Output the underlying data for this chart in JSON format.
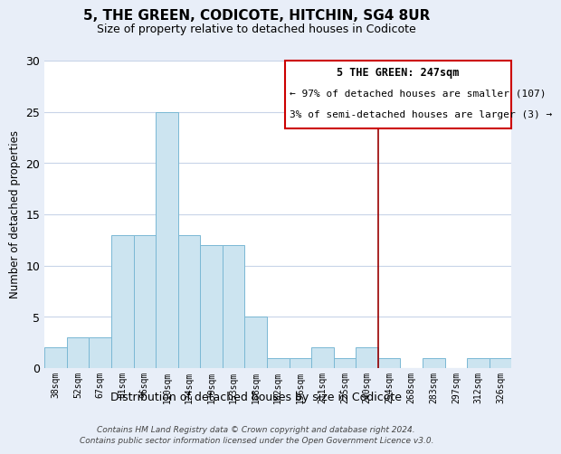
{
  "title": "5, THE GREEN, CODICOTE, HITCHIN, SG4 8UR",
  "subtitle": "Size of property relative to detached houses in Codicote",
  "xlabel": "Distribution of detached houses by size in Codicote",
  "ylabel": "Number of detached properties",
  "bin_labels": [
    "38sqm",
    "52sqm",
    "67sqm",
    "81sqm",
    "96sqm",
    "110sqm",
    "124sqm",
    "139sqm",
    "153sqm",
    "168sqm",
    "182sqm",
    "196sqm",
    "211sqm",
    "225sqm",
    "240sqm",
    "254sqm",
    "268sqm",
    "283sqm",
    "297sqm",
    "312sqm",
    "326sqm"
  ],
  "bar_values": [
    2,
    3,
    3,
    13,
    13,
    25,
    13,
    12,
    12,
    5,
    1,
    1,
    2,
    1,
    2,
    1,
    0,
    1,
    0,
    1,
    1
  ],
  "bar_color": "#cce4f0",
  "bar_edge_color": "#7ab8d4",
  "ylim": [
    0,
    30
  ],
  "yticks": [
    0,
    5,
    10,
    15,
    20,
    25,
    30
  ],
  "vline_x": 14.5,
  "vline_color": "#990000",
  "annotation_box_title": "5 THE GREEN: 247sqm",
  "annotation_line1": "← 97% of detached houses are smaller (107)",
  "annotation_line2": "3% of semi-detached houses are larger (3) →",
  "footer_line1": "Contains HM Land Registry data © Crown copyright and database right 2024.",
  "footer_line2": "Contains public sector information licensed under the Open Government Licence v3.0.",
  "background_color": "#e8eef8",
  "plot_background": "#ffffff",
  "grid_color": "#c8d4e8"
}
